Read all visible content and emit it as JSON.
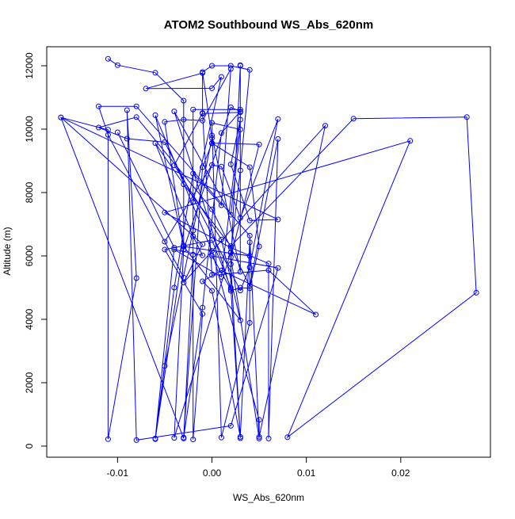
{
  "chart_data": {
    "type": "line",
    "title": "ATOM2 Southbound WS_Abs_620nm",
    "xlabel": "WS_Abs_620nm",
    "ylabel": "Altitude (m)",
    "xlim": [
      -0.0175,
      0.0295
    ],
    "ylim": [
      -350,
      12600
    ],
    "x_ticks": [
      -0.01,
      0.0,
      0.01,
      0.02
    ],
    "x_tick_labels": [
      "-0.01",
      "0.00",
      "0.01",
      "0.02"
    ],
    "y_ticks": [
      0,
      2000,
      4000,
      6000,
      8000,
      10000,
      12000
    ],
    "y_tick_labels": [
      "0",
      "2000",
      "4000",
      "6000",
      "8000",
      "10000",
      "12000"
    ],
    "grid": false,
    "legend": false,
    "series_color": "#0000ff",
    "markers": "open-circle",
    "series": [
      {
        "points": [
          [
            -0.011,
            12220
          ],
          [
            -0.01,
            12020
          ],
          [
            -0.006,
            11780
          ],
          [
            -0.003,
            10900
          ],
          [
            -0.003,
            6330
          ],
          [
            -0.006,
            220
          ],
          [
            -0.005,
            2530
          ],
          [
            -0.002,
            6800
          ],
          [
            0.0,
            9720
          ],
          [
            -0.001,
            11800
          ],
          [
            0.0,
            12000
          ],
          [
            0.002,
            12000
          ],
          [
            0.004,
            11870
          ],
          [
            0.003,
            8700
          ],
          [
            0.002,
            6120
          ],
          [
            -0.004,
            260
          ],
          [
            -0.003,
            6200
          ],
          [
            0.002,
            10690
          ],
          [
            0.003,
            10560
          ],
          [
            0.001,
            9880
          ],
          [
            -0.001,
            4370
          ],
          [
            -0.003,
            270
          ],
          [
            -0.001,
            8800
          ],
          [
            0.0,
            9560
          ],
          [
            0.005,
            9520
          ],
          [
            0.002,
            5960
          ],
          [
            0.005,
            240
          ],
          [
            0.004,
            6640
          ],
          [
            -0.008,
            10720
          ],
          [
            -0.012,
            10720
          ],
          [
            -0.011,
            9820
          ],
          [
            -0.003,
            5320
          ],
          [
            -0.005,
            6450
          ],
          [
            0.0,
            8870
          ],
          [
            0.001,
            8820
          ],
          [
            0.003,
            7200
          ],
          [
            0.007,
            10320
          ],
          [
            0.004,
            5640
          ],
          [
            0.003,
            4910
          ],
          [
            -0.005,
            9590
          ],
          [
            -0.009,
            9700
          ],
          [
            -0.012,
            10050
          ],
          [
            -0.008,
            10380
          ],
          [
            0.0,
            7470
          ],
          [
            0.004,
            5050
          ],
          [
            0.007,
            9690
          ],
          [
            0.006,
            240
          ],
          [
            0.006,
            5760
          ],
          [
            0.002,
            6260
          ],
          [
            -0.005,
            7370
          ],
          [
            0.021,
            9630
          ],
          [
            0.008,
            280
          ],
          [
            0.028,
            4840
          ],
          [
            0.027,
            10380
          ],
          [
            0.015,
            10330
          ],
          [
            0.002,
            6310
          ],
          [
            -0.003,
            8260
          ],
          [
            -0.006,
            9560
          ],
          [
            -0.002,
            6620
          ],
          [
            -0.001,
            6020
          ],
          [
            -0.004,
            6200
          ],
          [
            0.001,
            5340
          ],
          [
            0.003,
            10300
          ],
          [
            0.002,
            8890
          ],
          [
            0.004,
            7120
          ],
          [
            0.007,
            7150
          ],
          [
            -0.016,
            10370
          ],
          [
            -0.001,
            6370
          ],
          [
            -0.003,
            5160
          ],
          [
            0.012,
            10110
          ],
          [
            0.005,
            290
          ],
          [
            0.005,
            830
          ],
          [
            0.0,
            6160
          ],
          [
            -0.006,
            10440
          ],
          [
            -0.003,
            6300
          ],
          [
            0.003,
            3970
          ],
          [
            0.001,
            6520
          ],
          [
            -0.004,
            8860
          ],
          [
            -0.001,
            10510
          ],
          [
            0.0,
            5400
          ],
          [
            0.006,
            5550
          ],
          [
            0.011,
            4150
          ],
          [
            0.001,
            5540
          ],
          [
            -0.001,
            5200
          ],
          [
            0.0,
            4900
          ],
          [
            0.003,
            290
          ],
          [
            0.004,
            6430
          ],
          [
            0.004,
            3890
          ],
          [
            0.001,
            270
          ],
          [
            0.0,
            10200
          ],
          [
            0.003,
            9990
          ],
          [
            0.002,
            7300
          ],
          [
            -0.004,
            10560
          ],
          [
            0.002,
            4950
          ],
          [
            0.0,
            6000
          ],
          [
            0.007,
            5620
          ],
          [
            0.002,
            640
          ],
          [
            -0.008,
            190
          ],
          [
            -0.009,
            10600
          ],
          [
            -0.008,
            5300
          ],
          [
            -0.011,
            220
          ],
          [
            -0.011,
            9980
          ],
          [
            -0.016,
            10370
          ],
          [
            -0.003,
            240
          ],
          [
            -0.002,
            6040
          ],
          [
            -0.002,
            10620
          ],
          [
            0.003,
            10620
          ],
          [
            0.003,
            12000
          ],
          [
            0.002,
            5740
          ],
          [
            0.003,
            250
          ],
          [
            0.002,
            5000
          ],
          [
            0.0,
            6500
          ],
          [
            -0.005,
            6200
          ],
          [
            -0.001,
            4170
          ],
          [
            -0.002,
            210
          ],
          [
            -0.002,
            7700
          ],
          [
            0.001,
            11650
          ],
          [
            0.0,
            11290
          ],
          [
            -0.007,
            11280
          ],
          [
            -0.001,
            11770
          ],
          [
            -0.001,
            10490
          ],
          [
            0.003,
            10530
          ],
          [
            0.003,
            12020
          ],
          [
            0.003,
            5500
          ],
          [
            0.0,
            9800
          ],
          [
            0.0,
            9560
          ],
          [
            0.004,
            8800
          ],
          [
            0.005,
            6300
          ],
          [
            0.004,
            4980
          ],
          [
            0.003,
            5000
          ],
          [
            0.002,
            4900
          ],
          [
            0.002,
            6100
          ],
          [
            0.004,
            6000
          ],
          [
            -0.003,
            6300
          ],
          [
            -0.005,
            10230
          ],
          [
            -0.003,
            10300
          ],
          [
            -0.001,
            10270
          ],
          [
            0.002,
            11900
          ],
          [
            0.001,
            7600
          ],
          [
            -0.002,
            8600
          ],
          [
            -0.004,
            5000
          ],
          [
            -0.006,
            240
          ],
          [
            -0.004,
            6260
          ],
          [
            -0.01,
            9900
          ]
        ]
      }
    ]
  }
}
